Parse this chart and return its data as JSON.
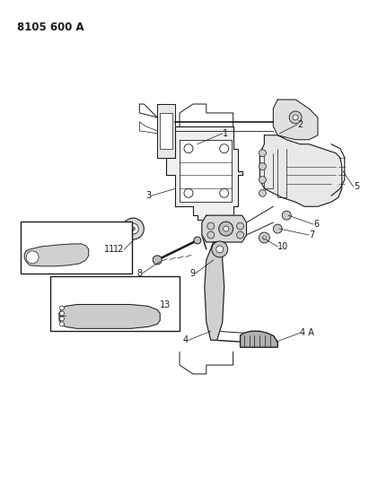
{
  "title": "8105 600 A",
  "background_color": "#ffffff",
  "line_color": "#1a1a1a",
  "fig_width": 4.11,
  "fig_height": 5.33,
  "dpi": 100,
  "title_fontsize": 8.5,
  "label_fontsize": 7.0
}
